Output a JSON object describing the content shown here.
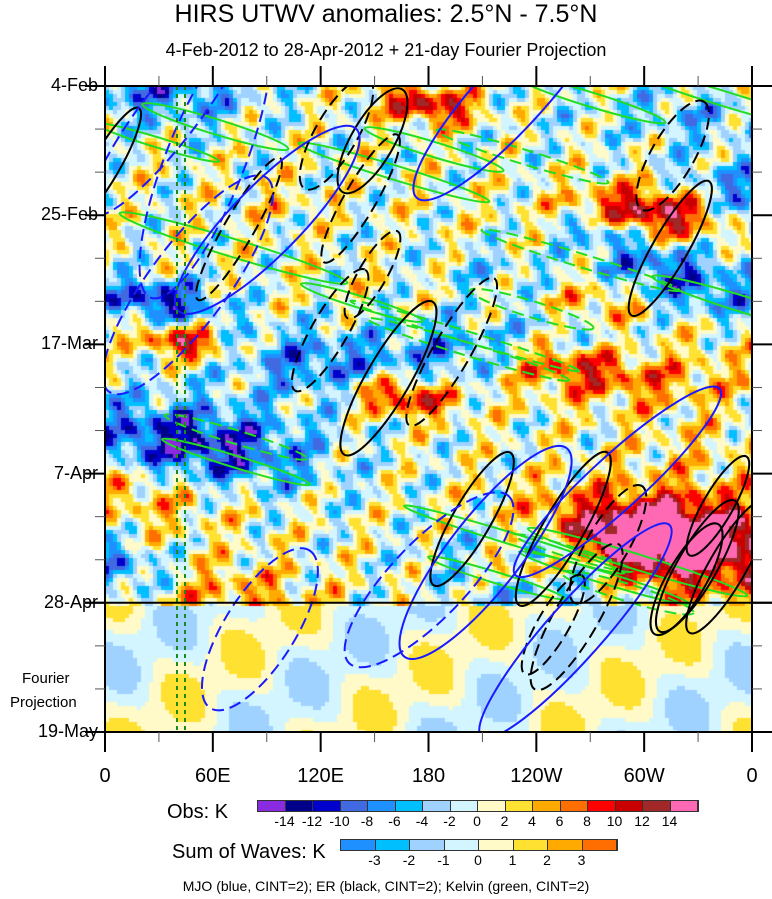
{
  "title": "HIRS UTWV anomalies: 2.5°N - 7.5°N",
  "subtitle": "4-Feb-2012 to 28-Apr-2012 + 21-day Fourier Projection",
  "forecast_label_1": "Fourier",
  "forecast_label_2": "Projection",
  "chart_data": {
    "type": "heatmap",
    "title": "HIRS UTWV anomalies: 2.5°N - 7.5°N",
    "y_ticks": [
      "4-Feb",
      "25-Feb",
      "17-Mar",
      "7-Apr",
      "28-Apr",
      "19-May"
    ],
    "x_ticks": [
      "0",
      "60E",
      "120E",
      "180",
      "120W",
      "60W",
      "0"
    ],
    "xlim": [
      0,
      360
    ],
    "obs_end": "28-Apr",
    "obs_colorbar": {
      "label": "Obs: K",
      "levels": [
        "-14",
        "-12",
        "-10",
        "-8",
        "-6",
        "-4",
        "-2",
        "0",
        "2",
        "4",
        "6",
        "8",
        "10",
        "12",
        "14"
      ],
      "colors": [
        "#8a2be2",
        "#00008b",
        "#0000cd",
        "#4169e1",
        "#1e90ff",
        "#00bfff",
        "#a0d2ff",
        "#d2f5ff",
        "#fffac8",
        "#ffe132",
        "#ffaa00",
        "#ff6e00",
        "#ff0000",
        "#c80000",
        "#a02828",
        "#ff69b4"
      ]
    },
    "waves_colorbar": {
      "label": "Sum of Waves: K",
      "levels": [
        "-3",
        "-2",
        "-1",
        "0",
        "1",
        "2",
        "3"
      ],
      "colors": [
        "#1e90ff",
        "#00bfff",
        "#a0d2ff",
        "#d2f5ff",
        "#fffac8",
        "#ffe132",
        "#ffaa00",
        "#ff6e00"
      ]
    },
    "contour_legend": "MJO (blue, CINT=2); ER (black, CINT=2); Kelvin (green, CINT=2)"
  }
}
